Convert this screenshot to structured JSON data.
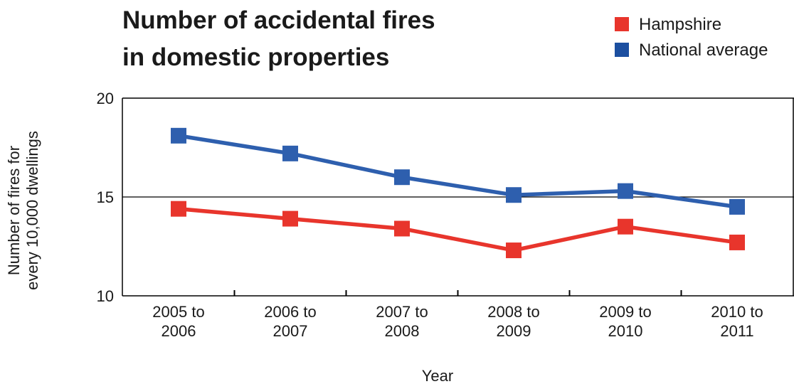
{
  "chart_data": {
    "type": "line",
    "title": [
      "Number of accidental fires",
      "in domestic properties"
    ],
    "xlabel": "Year",
    "ylabel": [
      "Number of fires for",
      "every 10,000 dwellings"
    ],
    "ylim": [
      10,
      20
    ],
    "yticks": [
      "10",
      "15",
      "20"
    ],
    "categories": [
      [
        "2005 to",
        "2006"
      ],
      [
        "2006 to",
        "2007"
      ],
      [
        "2007 to",
        "2008"
      ],
      [
        "2008 to",
        "2009"
      ],
      [
        "2009 to",
        "2010"
      ],
      [
        "2010 to",
        "2011"
      ]
    ],
    "legend_position": "top-right",
    "gridlines": [
      15
    ],
    "series": [
      {
        "name": "Hampshire",
        "color": "#e8352c",
        "values": [
          14.4,
          13.9,
          13.4,
          12.3,
          13.5,
          12.7
        ]
      },
      {
        "name": "National average",
        "color": "#2e5fae",
        "legend_color": "#1c4fa0",
        "values": [
          18.1,
          17.2,
          16.0,
          15.1,
          15.3,
          14.5
        ]
      }
    ]
  }
}
